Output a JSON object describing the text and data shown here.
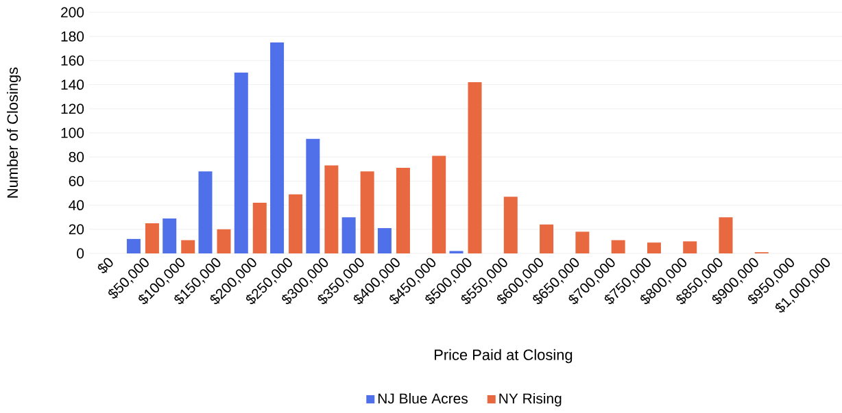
{
  "chart_data": {
    "type": "bar",
    "xlabel": "Price Paid at Closing",
    "ylabel": "Number of Closings",
    "categories": [
      "$0",
      "$50,000",
      "$100,000",
      "$150,000",
      "$200,000",
      "$250,000",
      "$300,000",
      "$350,000",
      "$400,000",
      "$450,000",
      "$500,000",
      "$550,000",
      "$600,000",
      "$650,000",
      "$700,000",
      "$750,000",
      "$800,000",
      "$850,000",
      "$900,000",
      "$950,000",
      "$1,000,000"
    ],
    "series": [
      {
        "name": "NJ Blue Acres",
        "color": "#4f70e8",
        "values": [
          0,
          12,
          29,
          68,
          150,
          175,
          95,
          30,
          21,
          0,
          2,
          0,
          0,
          0,
          0,
          0,
          0,
          0,
          0,
          0,
          0
        ]
      },
      {
        "name": "NY Rising",
        "color": "#e8683f",
        "values": [
          0,
          25,
          11,
          20,
          42,
          49,
          73,
          68,
          71,
          81,
          142,
          47,
          24,
          18,
          11,
          9,
          10,
          30,
          1,
          0,
          0
        ]
      }
    ],
    "ylim": [
      0,
      200
    ],
    "yticks": [
      0,
      20,
      40,
      60,
      80,
      100,
      120,
      140,
      160,
      180,
      200
    ],
    "grid": "y",
    "legend": "bottom"
  }
}
